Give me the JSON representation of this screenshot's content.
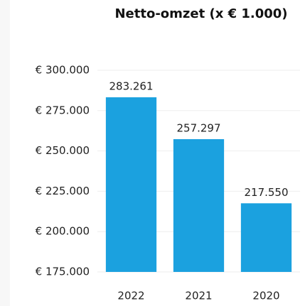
{
  "chart_data": {
    "type": "bar",
    "title": "Netto-omzet (x € 1.000)",
    "categories": [
      "2022",
      "2021",
      "2020"
    ],
    "values": [
      283261,
      257297,
      217550
    ],
    "value_labels": [
      "283.261",
      "257.297",
      "217.550"
    ],
    "color": "#1ba1df",
    "ylim": [
      175000,
      300000
    ],
    "yticks": [
      {
        "value": 175000,
        "label": "€ 175.000"
      },
      {
        "value": 200000,
        "label": "€ 200.000"
      },
      {
        "value": 225000,
        "label": "€ 225.000"
      },
      {
        "value": 250000,
        "label": "€ 250.000"
      },
      {
        "value": 275000,
        "label": "€ 275.000"
      },
      {
        "value": 300000,
        "label": "€ 300.000"
      }
    ],
    "grid": true
  }
}
